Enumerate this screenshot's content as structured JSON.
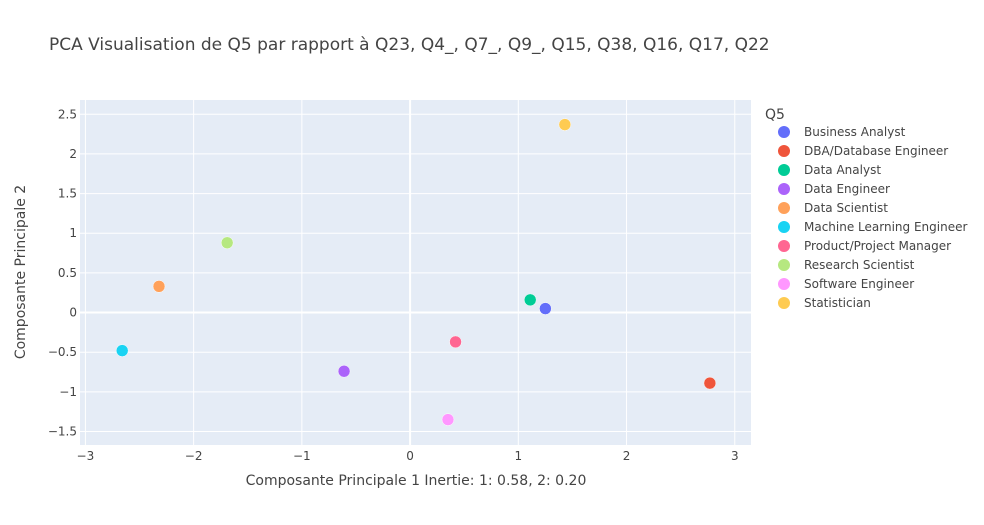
{
  "chart_data": {
    "type": "scatter",
    "title": "PCA Visualisation de Q5 par rapport à Q23, Q4_, Q7_, Q9_, Q15, Q38, Q16, Q17, Q22",
    "xlabel": "Composante Principale 1 Inertie: 1: 0.58, 2: 0.20",
    "ylabel": "Composante Principale 2",
    "xlim": [
      -3.05,
      3.15
    ],
    "ylim": [
      -1.67,
      2.68
    ],
    "xticks": [
      -3,
      -2,
      -1,
      0,
      1,
      2,
      3
    ],
    "xtick_labels": [
      "−3",
      "−2",
      "−1",
      "0",
      "1",
      "2",
      "3"
    ],
    "yticks": [
      -1.5,
      -1,
      -0.5,
      0,
      0.5,
      1,
      1.5,
      2,
      2.5
    ],
    "ytick_labels": [
      "−1.5",
      "−1",
      "−0.5",
      "0",
      "0.5",
      "1",
      "1.5",
      "2",
      "2.5"
    ],
    "grid": true,
    "legend_title": "Q5",
    "legend_position": "right",
    "series": [
      {
        "name": "Business Analyst",
        "color": "#636efa",
        "x": 1.25,
        "y": 0.05
      },
      {
        "name": "DBA/Database Engineer",
        "color": "#ef553b",
        "x": 2.77,
        "y": -0.89
      },
      {
        "name": "Data Analyst",
        "color": "#00cc96",
        "x": 1.11,
        "y": 0.16
      },
      {
        "name": "Data Engineer",
        "color": "#ab63fa",
        "x": -0.61,
        "y": -0.74
      },
      {
        "name": "Data Scientist",
        "color": "#ffa15a",
        "x": -2.32,
        "y": 0.33
      },
      {
        "name": "Machine Learning Engineer",
        "color": "#19d3f3",
        "x": -2.66,
        "y": -0.48
      },
      {
        "name": "Product/Project Manager",
        "color": "#ff6692",
        "x": 0.42,
        "y": -0.37
      },
      {
        "name": "Research Scientist",
        "color": "#b6e880",
        "x": -1.69,
        "y": 0.88
      },
      {
        "name": "Software Engineer",
        "color": "#ff97ff",
        "x": 0.35,
        "y": -1.35
      },
      {
        "name": "Statistician",
        "color": "#fecb52",
        "x": 1.43,
        "y": 2.37
      }
    ]
  }
}
